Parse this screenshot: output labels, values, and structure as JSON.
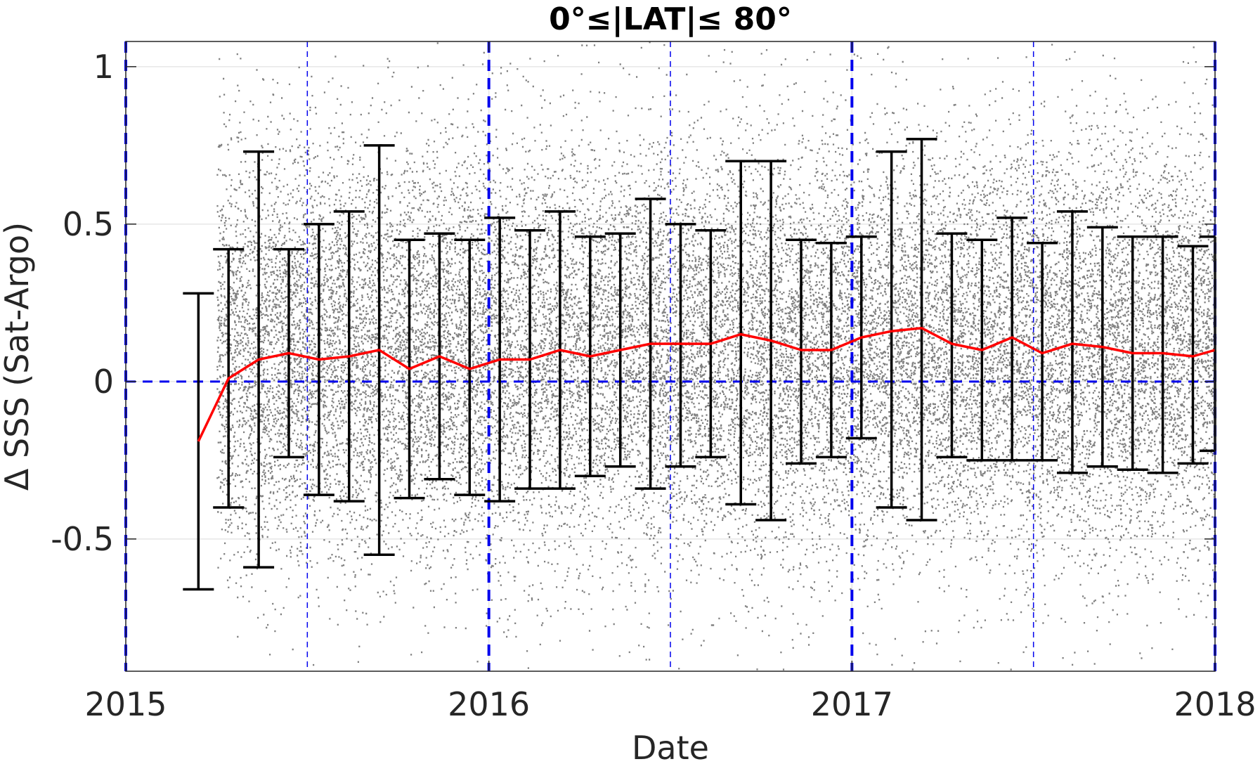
{
  "chart_data": {
    "type": "scatter",
    "title": "0°≤|LAT|≤ 80°",
    "xlabel": "Date",
    "ylabel": "Δ SSS (Sat-Argo)",
    "xlim": [
      2015.0,
      2018.0
    ],
    "ylim": [
      -0.92,
      1.08
    ],
    "xticks": [
      2015,
      2016,
      2017,
      2018
    ],
    "xtick_labels": [
      "2015",
      "2016",
      "2017",
      "2018"
    ],
    "yticks": [
      -0.5,
      0,
      0.5,
      1
    ],
    "ytick_labels": [
      "-0.5",
      "0",
      "0.5",
      "1"
    ],
    "grid": true,
    "legend": "none",
    "colors": {
      "scatter": "#808080",
      "mean_line": "#ff0000",
      "errorbar": "#000000",
      "reference": "#0000ee",
      "grid": "#e6e6e6",
      "axis": "#262626"
    },
    "scatter_description": {
      "x_start": 2015.25,
      "x_end": 2018.0,
      "center": 0.1,
      "spread_sd": 0.33
    },
    "reference_lines": {
      "horizontal_y": 0,
      "year_lines": [
        2015.0,
        2016.0,
        2017.0,
        2018.0
      ],
      "half_year_lines": [
        2015.5,
        2016.5,
        2017.5
      ]
    },
    "series": [
      {
        "kind": "mean_with_errorbars",
        "x": [
          2015.2,
          2015.283,
          2015.366,
          2015.449,
          2015.532,
          2015.615,
          2015.698,
          2015.781,
          2015.864,
          2015.947,
          2016.03,
          2016.113,
          2016.196,
          2016.279,
          2016.362,
          2016.445,
          2016.528,
          2016.611,
          2016.694,
          2016.777,
          2016.86,
          2016.943,
          2017.026,
          2017.109,
          2017.192,
          2017.275,
          2017.358,
          2017.441,
          2017.524,
          2017.607,
          2017.69,
          2017.773,
          2017.856,
          2017.939,
          2018.0
        ],
        "mean": [
          -0.19,
          0.01,
          0.07,
          0.09,
          0.07,
          0.08,
          0.1,
          0.04,
          0.08,
          0.04,
          0.07,
          0.07,
          0.1,
          0.08,
          0.1,
          0.12,
          0.12,
          0.12,
          0.15,
          0.13,
          0.1,
          0.1,
          0.14,
          0.16,
          0.17,
          0.12,
          0.1,
          0.14,
          0.09,
          0.12,
          0.11,
          0.09,
          0.09,
          0.08,
          0.1
        ],
        "lower": [
          -0.66,
          -0.4,
          -0.59,
          -0.24,
          -0.36,
          -0.38,
          -0.55,
          -0.37,
          -0.31,
          -0.36,
          -0.38,
          -0.34,
          -0.34,
          -0.3,
          -0.27,
          -0.34,
          -0.27,
          -0.24,
          -0.39,
          -0.44,
          -0.26,
          -0.24,
          -0.18,
          -0.4,
          -0.44,
          -0.24,
          -0.25,
          -0.25,
          -0.25,
          -0.29,
          -0.27,
          -0.28,
          -0.29,
          -0.26,
          -0.22
        ],
        "upper": [
          0.28,
          0.42,
          0.73,
          0.42,
          0.5,
          0.54,
          0.75,
          0.45,
          0.47,
          0.45,
          0.52,
          0.48,
          0.54,
          0.46,
          0.47,
          0.58,
          0.5,
          0.48,
          0.7,
          0.7,
          0.45,
          0.44,
          0.46,
          0.73,
          0.77,
          0.47,
          0.45,
          0.52,
          0.44,
          0.54,
          0.49,
          0.46,
          0.46,
          0.43,
          0.46
        ]
      }
    ]
  }
}
